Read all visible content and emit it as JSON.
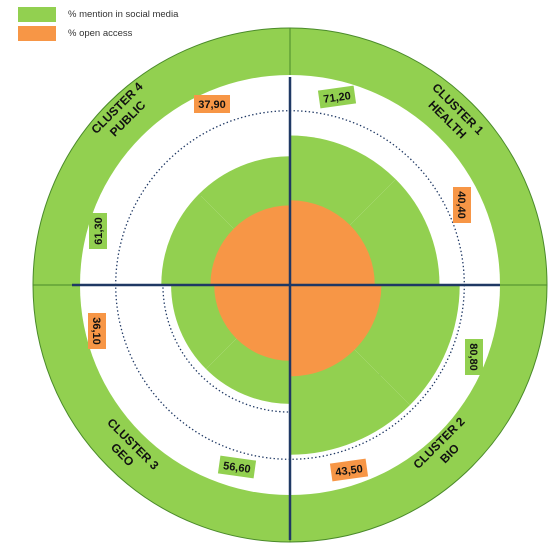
{
  "colors": {
    "social": "#92d050",
    "open": "#f79646",
    "axis": "#1f3864",
    "ring_line": "#1f3864",
    "divider": "#4a8a2a"
  },
  "legend": {
    "items": [
      {
        "label": "% mention in social media",
        "color": "#92d050"
      },
      {
        "label": "% open access",
        "color": "#f79646"
      }
    ]
  },
  "chart_data": {
    "type": "polar-area",
    "series": [
      {
        "name": "% mention in social media",
        "color": "#92d050"
      },
      {
        "name": "% open access",
        "color": "#f79646"
      }
    ],
    "clusters": [
      {
        "id": "1",
        "lines": [
          "CLUSTER 1",
          "HEALTH"
        ],
        "social": 71.2,
        "social_label": "71,20",
        "open": 40.4,
        "open_label": "40,40"
      },
      {
        "id": "2",
        "lines": [
          "CLUSTER 2",
          "BIO"
        ],
        "social": 80.8,
        "social_label": "80,80",
        "open": 43.5,
        "open_label": "43,50"
      },
      {
        "id": "3",
        "lines": [
          "CLUSTER 3",
          "GEO"
        ],
        "social": 56.6,
        "social_label": "56,60",
        "open": 36.1,
        "open_label": "36,10"
      },
      {
        "id": "4",
        "lines": [
          "CLUSTER 4",
          "PUBLIC"
        ],
        "social": 61.3,
        "social_label": "61,30",
        "open": 37.9,
        "open_label": "37,90"
      }
    ],
    "rlim": [
      0,
      100
    ],
    "grid": true
  }
}
